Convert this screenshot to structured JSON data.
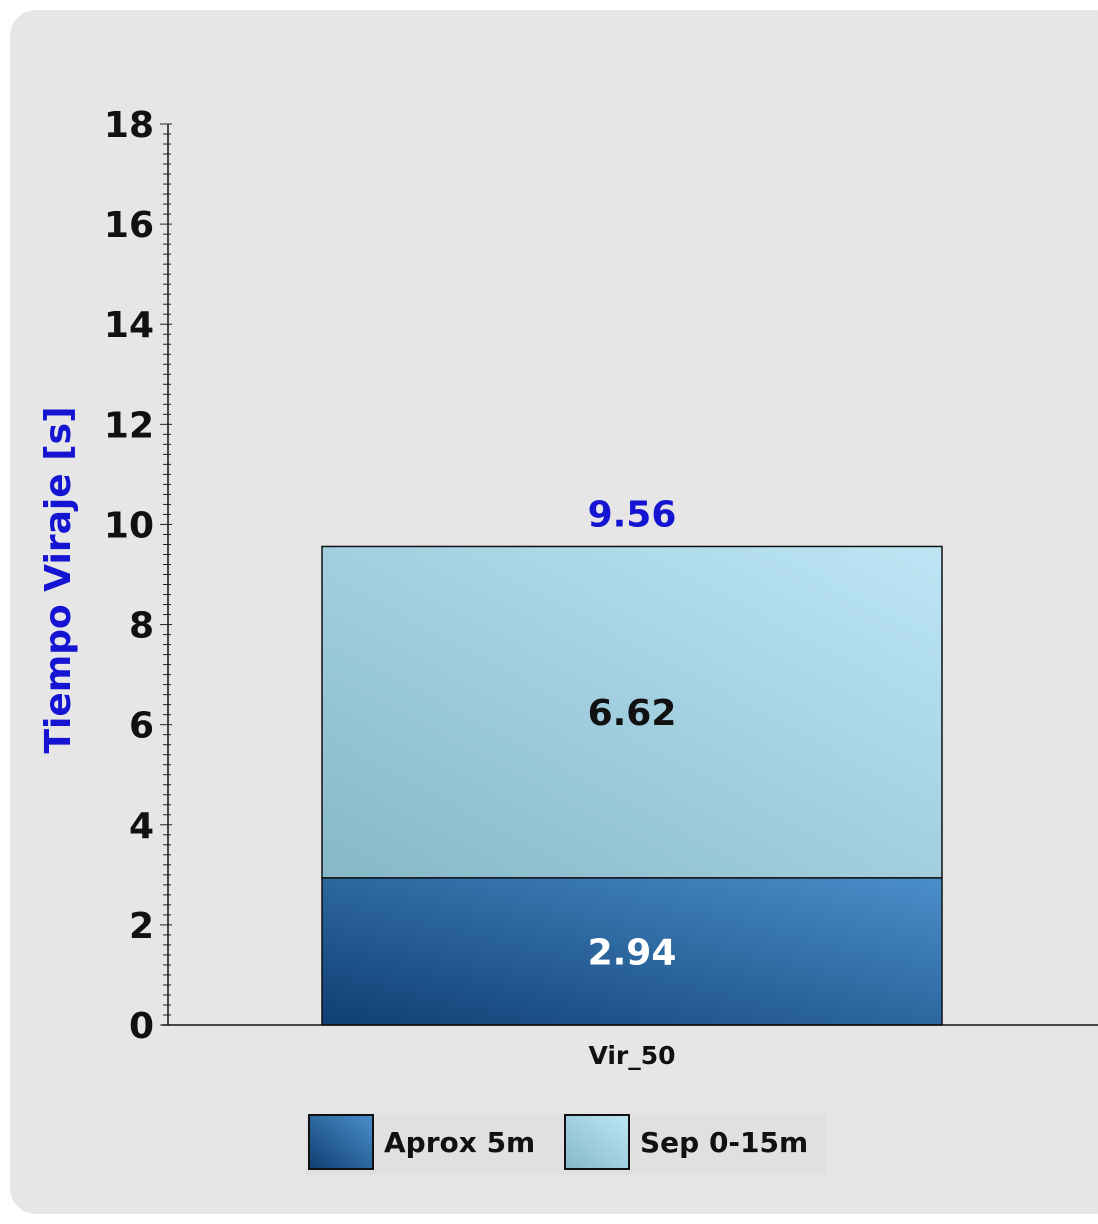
{
  "chart_data": {
    "type": "bar",
    "stacked": true,
    "categories": [
      "Vir_50"
    ],
    "series": [
      {
        "name": "Aprox 5m",
        "values": [
          2.94
        ],
        "color": "#1f5c97"
      },
      {
        "name": "Sep 0-15m",
        "values": [
          6.62
        ],
        "color": "#9fd2e6"
      }
    ],
    "totals": [
      9.56
    ],
    "total_label": "9.56",
    "segment_labels": [
      "2.94",
      "6.62"
    ],
    "title": "",
    "xlabel": "",
    "ylabel": "Tiempo Viraje [s]",
    "ylim": [
      0,
      18
    ],
    "yticks": [
      0,
      2,
      4,
      6,
      8,
      10,
      12,
      14,
      16,
      18
    ],
    "ytick_labels": [
      "0",
      "2",
      "4",
      "6",
      "8",
      "10",
      "12",
      "14",
      "16",
      "18"
    ],
    "legend_position": "bottom",
    "grid": false,
    "colors": {
      "ylabel": "#1414d2",
      "total_label": "#1414d2",
      "bottom_label": "#ffffff",
      "top_label": "#111111"
    }
  }
}
